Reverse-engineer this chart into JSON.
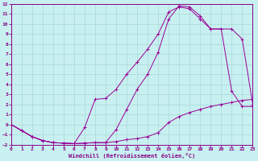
{
  "bg_color": "#c8f0f0",
  "grid_color": "#a8d8d8",
  "line_color": "#990099",
  "xlabel": "Windchill (Refroidissement éolien,°C)",
  "xlim": [
    0,
    23
  ],
  "ylim": [
    -2,
    12
  ],
  "xticks": [
    0,
    1,
    2,
    3,
    4,
    5,
    6,
    7,
    8,
    9,
    10,
    11,
    12,
    13,
    14,
    15,
    16,
    17,
    18,
    19,
    20,
    21,
    22,
    23
  ],
  "yticks": [
    -2,
    -1,
    0,
    1,
    2,
    3,
    4,
    5,
    6,
    7,
    8,
    9,
    10,
    11,
    12
  ],
  "curve1_x": [
    0,
    1,
    2,
    3,
    4,
    5,
    6,
    7,
    8,
    9,
    10,
    11,
    12,
    13,
    14,
    15,
    16,
    17,
    18,
    19,
    20,
    21,
    22,
    23
  ],
  "curve1_y": [
    0,
    -0.6,
    -1.2,
    -1.6,
    -1.8,
    -1.85,
    -1.9,
    -1.85,
    -1.8,
    -1.8,
    -1.7,
    -1.5,
    -1.4,
    -1.2,
    -0.8,
    0.2,
    0.8,
    1.2,
    1.5,
    1.8,
    2.0,
    2.2,
    2.4,
    2.5
  ],
  "curve2_x": [
    0,
    1,
    2,
    3,
    4,
    5,
    6,
    7,
    8,
    9,
    10,
    11,
    12,
    13,
    14,
    15,
    16,
    17,
    18,
    19,
    20,
    21,
    22,
    23
  ],
  "curve2_y": [
    0,
    -0.6,
    -1.2,
    -1.6,
    -1.8,
    -1.85,
    -1.9,
    -0.3,
    2.5,
    2.6,
    3.5,
    5.0,
    6.2,
    7.5,
    9.0,
    11.2,
    11.7,
    11.5,
    10.5,
    9.5,
    9.5,
    3.3,
    1.8,
    1.8
  ],
  "curve3_x": [
    0,
    1,
    2,
    3,
    4,
    5,
    6,
    7,
    8,
    9,
    10,
    11,
    12,
    13,
    14,
    15,
    16,
    17,
    18,
    19,
    20,
    21,
    22,
    23
  ],
  "curve3_y": [
    0,
    -0.6,
    -1.2,
    -1.6,
    -1.8,
    -1.85,
    -1.9,
    -1.85,
    -1.8,
    -1.8,
    -0.5,
    1.5,
    3.5,
    5.0,
    7.2,
    10.5,
    11.8,
    11.7,
    10.8,
    9.5,
    9.5,
    9.5,
    8.5,
    2.0
  ]
}
